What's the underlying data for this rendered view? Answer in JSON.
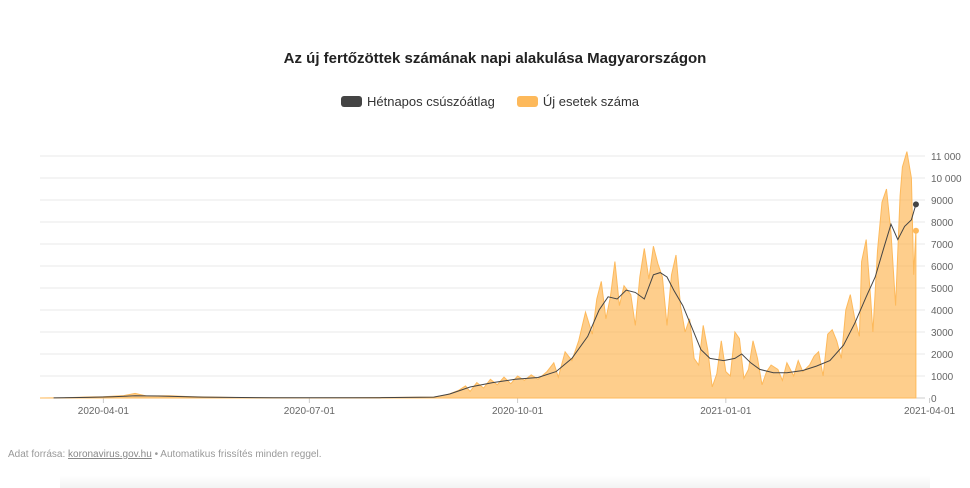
{
  "title": "Az új fertőzöttek számának napi alakulása Magyarországon",
  "legend": {
    "avg_label": "Hétnapos csúszóátlag",
    "cases_label": "Új esetek száma"
  },
  "colors": {
    "avg": "#444444",
    "cases": "#fdb95b",
    "grid": "#e8e8e8",
    "axis_text": "#666666"
  },
  "source": {
    "prefix": "Adat forrása:",
    "link_text": "koronavirus.gov.hu",
    "suffix": "• Automatikus frissítés minden reggel."
  },
  "chart_data": {
    "type": "area",
    "title": "Az új fertőzöttek számának napi alakulása Magyarországon",
    "xlabel": "",
    "ylabel": "",
    "x_range": [
      "2020-03-04",
      "2021-03-30"
    ],
    "ylim": [
      0,
      11000
    ],
    "yticks": [
      0,
      1000,
      2000,
      3000,
      4000,
      5000,
      6000,
      7000,
      8000,
      9000,
      10000,
      11000
    ],
    "ytick_labels": [
      "0",
      "1000",
      "2000",
      "3000",
      "4000",
      "5000",
      "6000",
      "7000",
      "8000",
      "9000",
      "10 000",
      "11 000"
    ],
    "xticks": [
      "2020-04-01",
      "2020-07-01",
      "2020-10-01",
      "2021-01-01",
      "2021-04-01"
    ],
    "grid": true,
    "legend_position": "top-center",
    "series": [
      {
        "name": "Új esetek száma",
        "kind": "area",
        "points": [
          [
            "2020-03-04",
            2
          ],
          [
            "2020-03-15",
            8
          ],
          [
            "2020-03-25",
            45
          ],
          [
            "2020-04-01",
            55
          ],
          [
            "2020-04-10",
            110
          ],
          [
            "2020-04-15",
            210
          ],
          [
            "2020-04-20",
            90
          ],
          [
            "2020-04-30",
            100
          ],
          [
            "2020-05-10",
            60
          ],
          [
            "2020-05-25",
            25
          ],
          [
            "2020-06-10",
            10
          ],
          [
            "2020-07-01",
            5
          ],
          [
            "2020-07-20",
            15
          ],
          [
            "2020-08-10",
            25
          ],
          [
            "2020-08-25",
            40
          ],
          [
            "2020-08-31",
            150
          ],
          [
            "2020-09-05",
            350
          ],
          [
            "2020-09-08",
            550
          ],
          [
            "2020-09-10",
            300
          ],
          [
            "2020-09-13",
            700
          ],
          [
            "2020-09-16",
            450
          ],
          [
            "2020-09-19",
            850
          ],
          [
            "2020-09-22",
            600
          ],
          [
            "2020-09-25",
            950
          ],
          [
            "2020-09-28",
            650
          ],
          [
            "2020-10-01",
            1000
          ],
          [
            "2020-10-04",
            800
          ],
          [
            "2020-10-07",
            1050
          ],
          [
            "2020-10-10",
            850
          ],
          [
            "2020-10-14",
            1200
          ],
          [
            "2020-10-17",
            1600
          ],
          [
            "2020-10-19",
            950
          ],
          [
            "2020-10-22",
            2100
          ],
          [
            "2020-10-25",
            1700
          ],
          [
            "2020-10-28",
            2600
          ],
          [
            "2020-10-31",
            3900
          ],
          [
            "2020-11-03",
            2900
          ],
          [
            "2020-11-05",
            4500
          ],
          [
            "2020-11-07",
            5300
          ],
          [
            "2020-11-09",
            3600
          ],
          [
            "2020-11-11",
            4600
          ],
          [
            "2020-11-13",
            6200
          ],
          [
            "2020-11-15",
            4200
          ],
          [
            "2020-11-17",
            5100
          ],
          [
            "2020-11-20",
            4700
          ],
          [
            "2020-11-22",
            3300
          ],
          [
            "2020-11-24",
            5500
          ],
          [
            "2020-11-26",
            6800
          ],
          [
            "2020-11-28",
            5400
          ],
          [
            "2020-11-30",
            6900
          ],
          [
            "2020-12-02",
            6100
          ],
          [
            "2020-12-04",
            5500
          ],
          [
            "2020-12-06",
            3300
          ],
          [
            "2020-12-08",
            5600
          ],
          [
            "2020-12-10",
            6500
          ],
          [
            "2020-12-12",
            4200
          ],
          [
            "2020-12-14",
            3000
          ],
          [
            "2020-12-16",
            3600
          ],
          [
            "2020-12-18",
            1800
          ],
          [
            "2020-12-20",
            1500
          ],
          [
            "2020-12-22",
            3300
          ],
          [
            "2020-12-24",
            2200
          ],
          [
            "2020-12-26",
            500
          ],
          [
            "2020-12-28",
            1100
          ],
          [
            "2020-12-30",
            2600
          ],
          [
            "2021-01-01",
            1200
          ],
          [
            "2021-01-03",
            1000
          ],
          [
            "2021-01-05",
            3000
          ],
          [
            "2021-01-07",
            2700
          ],
          [
            "2021-01-09",
            900
          ],
          [
            "2021-01-11",
            1300
          ],
          [
            "2021-01-13",
            2600
          ],
          [
            "2021-01-15",
            1800
          ],
          [
            "2021-01-17",
            600
          ],
          [
            "2021-01-19",
            1200
          ],
          [
            "2021-01-21",
            1500
          ],
          [
            "2021-01-24",
            1300
          ],
          [
            "2021-01-26",
            800
          ],
          [
            "2021-01-28",
            1600
          ],
          [
            "2021-01-31",
            1000
          ],
          [
            "2021-02-02",
            1700
          ],
          [
            "2021-02-04",
            1200
          ],
          [
            "2021-02-07",
            1500
          ],
          [
            "2021-02-09",
            1900
          ],
          [
            "2021-02-11",
            2100
          ],
          [
            "2021-02-13",
            1000
          ],
          [
            "2021-02-15",
            2900
          ],
          [
            "2021-02-17",
            3100
          ],
          [
            "2021-02-19",
            2600
          ],
          [
            "2021-02-21",
            1800
          ],
          [
            "2021-02-23",
            4000
          ],
          [
            "2021-02-25",
            4700
          ],
          [
            "2021-02-27",
            3600
          ],
          [
            "2021-03-01",
            2800
          ],
          [
            "2021-03-02",
            6200
          ],
          [
            "2021-03-04",
            7200
          ],
          [
            "2021-03-06",
            4500
          ],
          [
            "2021-03-07",
            3000
          ],
          [
            "2021-03-09",
            6700
          ],
          [
            "2021-03-11",
            8900
          ],
          [
            "2021-03-13",
            9500
          ],
          [
            "2021-03-15",
            7500
          ],
          [
            "2021-03-17",
            4200
          ],
          [
            "2021-03-19",
            9200
          ],
          [
            "2021-03-20",
            10500
          ],
          [
            "2021-03-22",
            11200
          ],
          [
            "2021-03-24",
            10000
          ],
          [
            "2021-03-25",
            5600
          ],
          [
            "2021-03-26",
            7600
          ]
        ]
      },
      {
        "name": "Hétnapos csúszóátlag",
        "kind": "line",
        "points": [
          [
            "2020-03-10",
            5
          ],
          [
            "2020-03-25",
            25
          ],
          [
            "2020-04-05",
            60
          ],
          [
            "2020-04-15",
            100
          ],
          [
            "2020-04-25",
            90
          ],
          [
            "2020-05-15",
            40
          ],
          [
            "2020-06-15",
            10
          ],
          [
            "2020-08-01",
            15
          ],
          [
            "2020-08-25",
            40
          ],
          [
            "2020-09-01",
            180
          ],
          [
            "2020-09-10",
            500
          ],
          [
            "2020-09-20",
            700
          ],
          [
            "2020-09-30",
            850
          ],
          [
            "2020-10-10",
            930
          ],
          [
            "2020-10-18",
            1200
          ],
          [
            "2020-10-25",
            1800
          ],
          [
            "2020-11-01",
            2800
          ],
          [
            "2020-11-06",
            4000
          ],
          [
            "2020-11-10",
            4600
          ],
          [
            "2020-11-14",
            4500
          ],
          [
            "2020-11-18",
            4900
          ],
          [
            "2020-11-22",
            4800
          ],
          [
            "2020-11-26",
            4500
          ],
          [
            "2020-11-30",
            5600
          ],
          [
            "2020-12-03",
            5700
          ],
          [
            "2020-12-06",
            5500
          ],
          [
            "2020-12-09",
            4900
          ],
          [
            "2020-12-13",
            4200
          ],
          [
            "2020-12-17",
            3200
          ],
          [
            "2020-12-21",
            2200
          ],
          [
            "2020-12-25",
            1800
          ],
          [
            "2020-12-31",
            1700
          ],
          [
            "2021-01-05",
            1800
          ],
          [
            "2021-01-08",
            2000
          ],
          [
            "2021-01-12",
            1600
          ],
          [
            "2021-01-16",
            1300
          ],
          [
            "2021-01-22",
            1150
          ],
          [
            "2021-01-28",
            1150
          ],
          [
            "2021-02-04",
            1250
          ],
          [
            "2021-02-10",
            1450
          ],
          [
            "2021-02-16",
            1700
          ],
          [
            "2021-02-22",
            2400
          ],
          [
            "2021-02-27",
            3400
          ],
          [
            "2021-03-04",
            4600
          ],
          [
            "2021-03-08",
            5500
          ],
          [
            "2021-03-12",
            6900
          ],
          [
            "2021-03-15",
            7900
          ],
          [
            "2021-03-18",
            7200
          ],
          [
            "2021-03-21",
            7800
          ],
          [
            "2021-03-24",
            8100
          ],
          [
            "2021-03-26",
            8800
          ]
        ]
      }
    ]
  }
}
